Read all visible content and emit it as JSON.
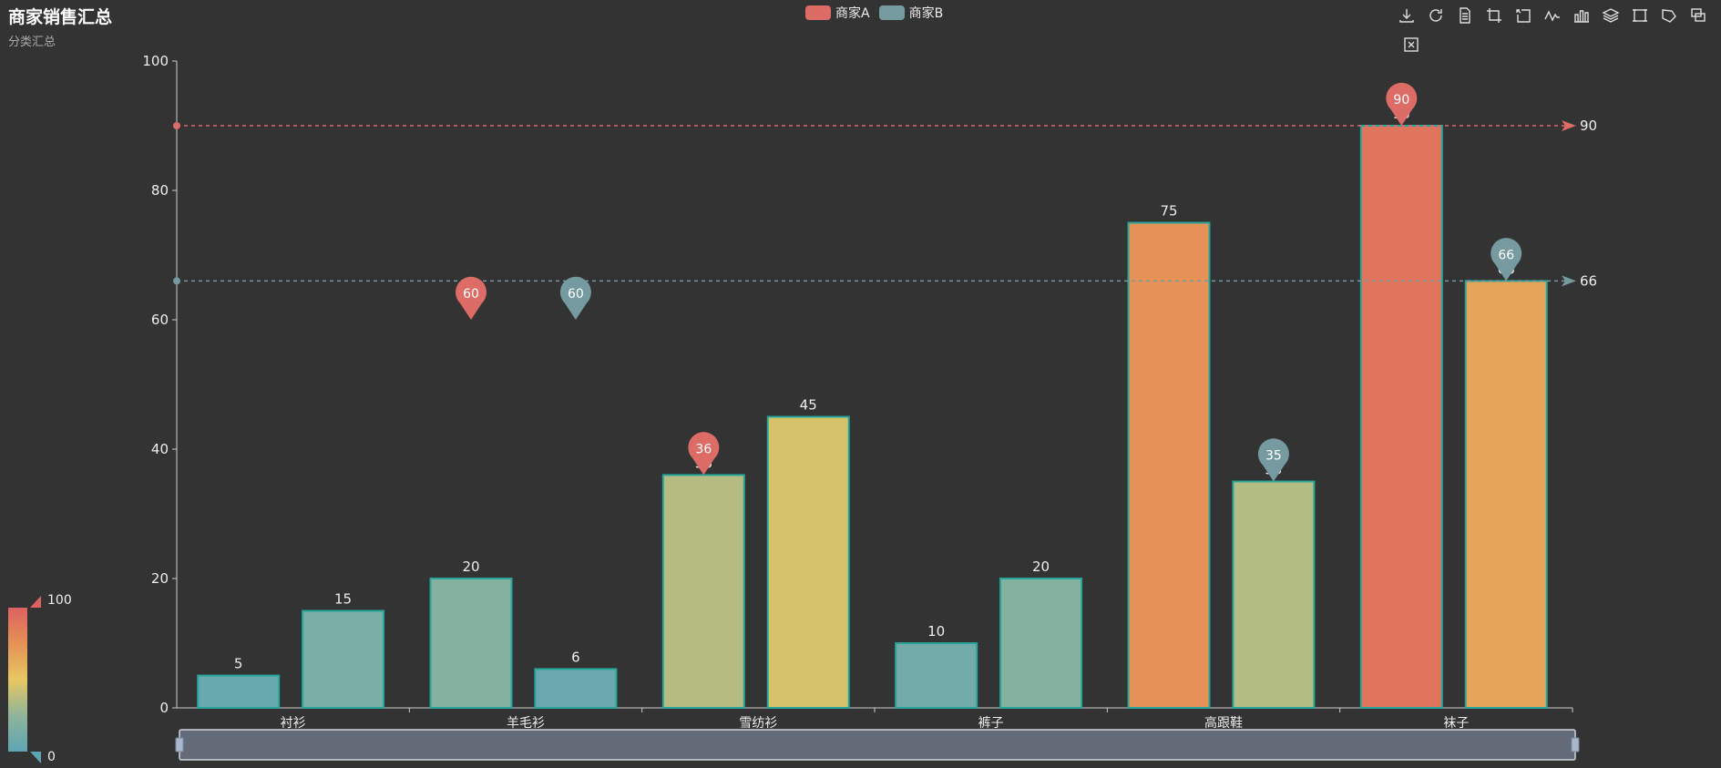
{
  "title": "商家销售汇总",
  "subtitle": "分类汇总",
  "legend": [
    {
      "name": "商家A",
      "color": "#dd6b66"
    },
    {
      "name": "商家B",
      "color": "#759aa0"
    }
  ],
  "toolbox": [
    "download-icon",
    "refresh-icon",
    "data-view-icon",
    "zoom-icon",
    "zoom-reset-icon",
    "line-chart-icon",
    "bar-chart-icon",
    "stack-icon",
    "rect-select-icon",
    "polygon-select-icon",
    "clear-select-icon",
    "fullscreen-icon"
  ],
  "visual_map": {
    "max_label": "100",
    "min_label": "0",
    "min": 0,
    "max": 100
  },
  "chart_data": {
    "type": "bar",
    "categories": [
      "衬衫",
      "羊毛衫",
      "雪纺衫",
      "裤子",
      "高跟鞋",
      "袜子"
    ],
    "series": [
      {
        "name": "商家A",
        "values": [
          5,
          20,
          36,
          10,
          75,
          90
        ],
        "color": "#dd6b66"
      },
      {
        "name": "商家B",
        "values": [
          15,
          6,
          45,
          20,
          35,
          66
        ],
        "color": "#759aa0"
      }
    ],
    "ylim": [
      0,
      100
    ],
    "yticks": [
      0,
      20,
      40,
      60,
      80,
      100
    ],
    "mark_points": [
      {
        "series": "商家A",
        "category": "羊毛衫",
        "value": 60,
        "label": "60"
      },
      {
        "series": "商家A",
        "category": "雪纺衫",
        "value": 36,
        "label": "36"
      },
      {
        "series": "商家A",
        "category": "袜子",
        "value": 90,
        "label": "90"
      },
      {
        "series": "商家B",
        "category": "羊毛衫",
        "value": 60,
        "label": "60"
      },
      {
        "series": "商家B",
        "category": "高跟鞋",
        "value": 35,
        "label": "35"
      },
      {
        "series": "商家B",
        "category": "袜子",
        "value": 66,
        "label": "66"
      }
    ],
    "mark_lines": [
      {
        "series": "商家A",
        "value": 90,
        "label": "90",
        "color": "#dd6b66"
      },
      {
        "series": "商家B",
        "value": 66,
        "label": "66",
        "color": "#759aa0"
      }
    ],
    "bar_border_color": "#26a69a",
    "grid": false
  }
}
